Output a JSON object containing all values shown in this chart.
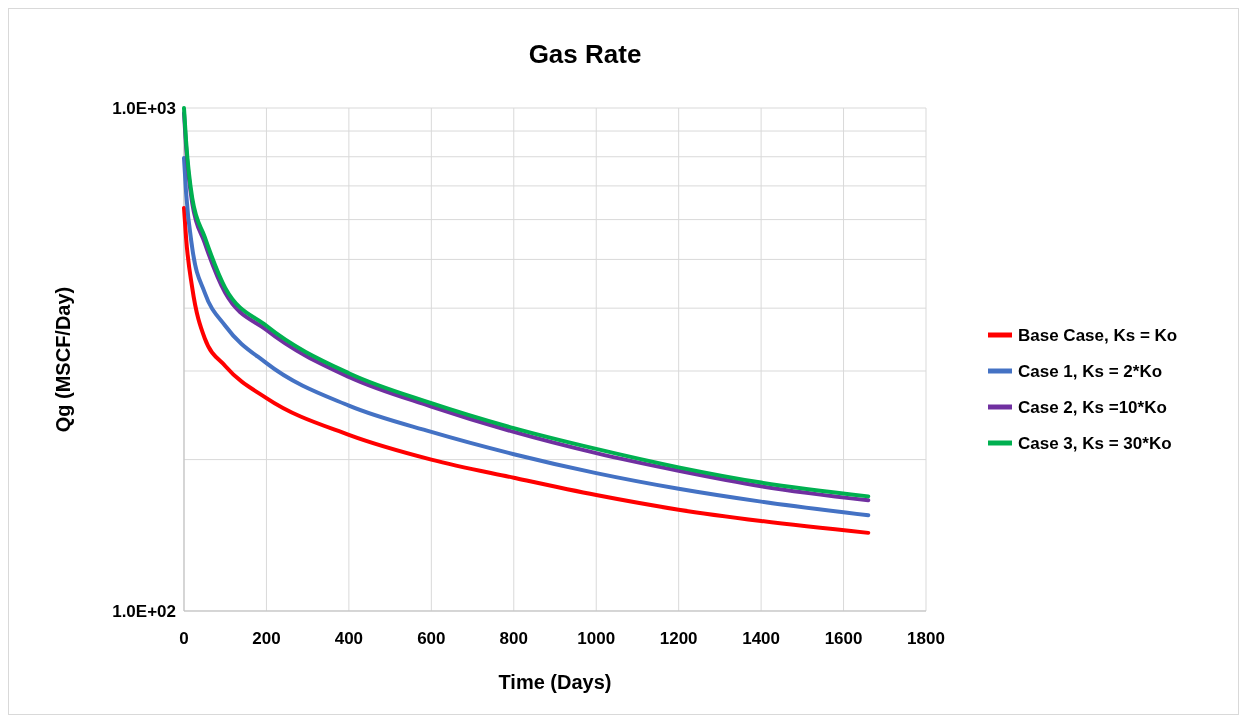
{
  "chart_data": {
    "type": "line",
    "title": "Gas Rate",
    "xlabel": "Time (Days)",
    "ylabel": "Qg (MSCF/Day)",
    "log": "y",
    "grid": true,
    "legend": "right",
    "line_style": "solid",
    "marker": "none",
    "xlim": [
      0,
      1800
    ],
    "xticks": [
      0,
      200,
      400,
      600,
      800,
      1000,
      1200,
      1400,
      1600,
      1800
    ],
    "ylim": [
      100,
      1000
    ],
    "yticks": [
      {
        "value": 100,
        "label": "1.0E+02"
      },
      {
        "value": 200,
        "label": null
      },
      {
        "value": 300,
        "label": null
      },
      {
        "value": 400,
        "label": null
      },
      {
        "value": 500,
        "label": null
      },
      {
        "value": 600,
        "label": null
      },
      {
        "value": 700,
        "label": null
      },
      {
        "value": 800,
        "label": null
      },
      {
        "value": 900,
        "label": null
      },
      {
        "value": 1000,
        "label": "1.0E+03"
      }
    ],
    "x": [
      0,
      5,
      20,
      50,
      100,
      200,
      400,
      600,
      800,
      1000,
      1200,
      1400,
      1660
    ],
    "series": [
      {
        "name": "Base Case, Ks = Ko",
        "color": "#ff0000",
        "values": [
          633,
          552,
          439,
          349,
          307,
          265,
          224,
          200,
          184,
          170,
          159,
          151,
          143
        ]
      },
      {
        "name": "Case 1, Ks = 2*Ko",
        "color": "#4472c4",
        "values": [
          795,
          680,
          527,
          430,
          369,
          311,
          256,
          227,
          205,
          188,
          175,
          165,
          155
        ]
      },
      {
        "name": "Case 2, Ks =10*Ko",
        "color": "#7030a0",
        "values": [
          977,
          840,
          647,
          540,
          429,
          362,
          292,
          255,
          227,
          206,
          190,
          177,
          166
        ]
      },
      {
        "name": "Case 3, Ks = 30*Ko",
        "color": "#00b050",
        "values": [
          1000,
          860,
          662,
          555,
          439,
          369,
          297,
          259,
          231,
          210,
          193,
          180,
          169
        ]
      }
    ]
  }
}
